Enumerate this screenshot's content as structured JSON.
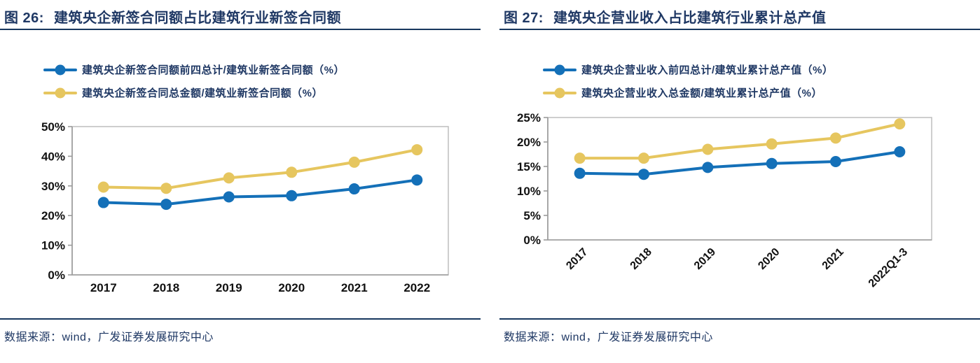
{
  "colors": {
    "navy": "#1F3864",
    "rule_dark": "#17375E",
    "series_blue": "#1470B8",
    "series_yellow": "#E6C65F",
    "axis_text": "#111111",
    "plot_border": "#BDBDBD",
    "axis_line": "#9B9B9B"
  },
  "chart_data": [
    {
      "type": "line",
      "title_prefix": "图 26:",
      "title": "建筑央企新签合同额占比建筑行业新签合同额",
      "categories": [
        "2017",
        "2018",
        "2019",
        "2020",
        "2021",
        "2022"
      ],
      "series": [
        {
          "name": "建筑央企新签合同额前四总计/建筑业新签合同额（%）",
          "color": "#1470B8",
          "values": [
            24.4,
            23.8,
            26.3,
            26.7,
            29.0,
            32.0
          ]
        },
        {
          "name": "建筑央企新签合同总金额/建筑业新签合同额（%）",
          "color": "#E6C65F",
          "values": [
            29.6,
            29.2,
            32.7,
            34.6,
            38.0,
            42.2
          ]
        }
      ],
      "ylim": [
        0,
        50
      ],
      "ytick_step": 10,
      "ytick_suffix": "%",
      "x_label_rotation": 0,
      "grid": false,
      "legend_position": "top",
      "source": "数据来源：wind，广发证券发展研究中心"
    },
    {
      "type": "line",
      "title_prefix": "图 27:",
      "title": "建筑央企营业收入占比建筑行业累计总产值",
      "categories": [
        "2017",
        "2018",
        "2019",
        "2020",
        "2021",
        "2022Q1-3"
      ],
      "series": [
        {
          "name": "建筑央企营业收入前四总计/建筑业累计总产值（%）",
          "color": "#1470B8",
          "values": [
            13.6,
            13.4,
            14.8,
            15.6,
            16.0,
            18.0
          ]
        },
        {
          "name": "建筑央企营业收入总金额/建筑业累计总产值（%）",
          "color": "#E6C65F",
          "values": [
            16.7,
            16.7,
            18.5,
            19.6,
            20.8,
            23.7
          ]
        }
      ],
      "ylim": [
        0,
        25
      ],
      "ytick_step": 5,
      "ytick_suffix": "%",
      "x_label_rotation": 45,
      "grid": false,
      "legend_position": "top",
      "source": "数据来源：wind，广发证券发展研究中心"
    }
  ]
}
